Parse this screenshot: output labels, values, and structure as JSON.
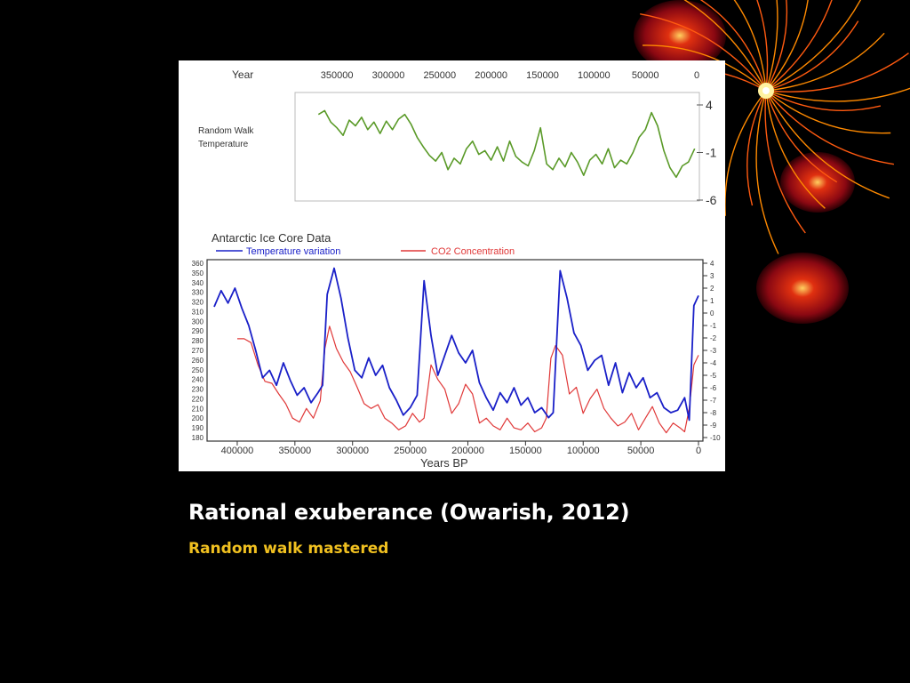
{
  "slide": {
    "title": "Rational exuberance (Owarish, 2012)",
    "subtitle": "Random walk mastered"
  },
  "colors": {
    "background": "#000000",
    "subtitle": "#f0c020",
    "random_walk": "#5a9a28",
    "temperature": "#1a20c8",
    "co2": "#e03838",
    "decor_orange": "#ff8a00"
  },
  "chart_data": [
    {
      "type": "line",
      "label": "Random Walk Temperature",
      "x_axis_label": "Year",
      "x_ticks": [
        "350000",
        "300000",
        "250000",
        "200000",
        "150000",
        "100000",
        "50000",
        "0"
      ],
      "y_ticks": [
        "4",
        "-1",
        "-6"
      ],
      "xlim": [
        370000,
        0
      ],
      "ylim": [
        -6,
        4
      ],
      "grid": false,
      "series": [
        {
          "name": "Random Walk Temperature",
          "color": "#5a9a28",
          "x": [
            368000,
            362000,
            356000,
            350000,
            344000,
            338000,
            332000,
            326000,
            320000,
            314000,
            308000,
            302000,
            296000,
            290000,
            284000,
            278000,
            272000,
            266000,
            260000,
            254000,
            248000,
            242000,
            236000,
            230000,
            224000,
            218000,
            212000,
            206000,
            200000,
            194000,
            188000,
            182000,
            176000,
            170000,
            164000,
            158000,
            152000,
            146000,
            140000,
            134000,
            128000,
            122000,
            116000,
            110000,
            104000,
            98000,
            92000,
            86000,
            80000,
            74000,
            68000,
            62000,
            56000,
            50000,
            44000,
            38000,
            32000,
            26000,
            20000,
            14000,
            8000,
            2000
          ],
          "y": [
            3.0,
            3.4,
            2.2,
            1.6,
            0.8,
            2.4,
            1.8,
            2.7,
            1.4,
            2.2,
            1.0,
            2.3,
            1.4,
            2.5,
            3.0,
            2.0,
            0.6,
            -0.4,
            -1.3,
            -1.9,
            -1.0,
            -2.8,
            -1.6,
            -2.2,
            -0.6,
            0.2,
            -1.2,
            -0.8,
            -1.8,
            -0.4,
            -1.9,
            0.2,
            -1.4,
            -2.0,
            -2.4,
            -0.8,
            1.6,
            -2.2,
            -2.8,
            -1.6,
            -2.5,
            -1.0,
            -2.0,
            -3.4,
            -1.8,
            -1.2,
            -2.2,
            -0.6,
            -2.6,
            -1.8,
            -2.2,
            -1.0,
            0.6,
            1.4,
            3.2,
            1.8,
            -0.8,
            -2.6,
            -3.6,
            -2.4,
            -2.0,
            -0.6
          ]
        }
      ]
    },
    {
      "type": "line",
      "title": "Antarctic Ice Core Data",
      "xlabel": "Years BP",
      "x_ticks": [
        "400000",
        "350000",
        "300000",
        "250000",
        "200000",
        "150000",
        "100000",
        "50000",
        "0"
      ],
      "y_ticks_left": [
        "360",
        "350",
        "340",
        "330",
        "320",
        "310",
        "300",
        "290",
        "280",
        "270",
        "260",
        "250",
        "240",
        "230",
        "220",
        "210",
        "200",
        "190",
        "180"
      ],
      "y_ticks_right": [
        "4",
        "3",
        "2",
        "1",
        "0",
        "-1",
        "-2",
        "-3",
        "-4",
        "-5",
        "-6",
        "-7",
        "-8",
        "-9",
        "-10"
      ],
      "xlim": [
        420000,
        0
      ],
      "ylim_left": [
        180,
        360
      ],
      "ylim_right": [
        -10,
        4
      ],
      "grid": false,
      "legend_position": "top",
      "series": [
        {
          "name": "Temperature variation",
          "color": "#1a20c8",
          "axis": "right",
          "x": [
            420000,
            414000,
            408000,
            402000,
            396000,
            390000,
            384000,
            378000,
            372000,
            366000,
            360000,
            354000,
            348000,
            342000,
            336000,
            330000,
            326000,
            322000,
            316000,
            310000,
            304000,
            298000,
            292000,
            286000,
            280000,
            274000,
            268000,
            262000,
            256000,
            250000,
            244000,
            238000,
            232000,
            226000,
            220000,
            214000,
            208000,
            202000,
            196000,
            190000,
            184000,
            178000,
            172000,
            166000,
            160000,
            154000,
            148000,
            142000,
            136000,
            130000,
            126000,
            120000,
            114000,
            108000,
            102000,
            96000,
            90000,
            84000,
            78000,
            72000,
            66000,
            60000,
            54000,
            48000,
            42000,
            36000,
            30000,
            24000,
            18000,
            12000,
            8000,
            4000,
            0
          ],
          "y": [
            0.5,
            1.8,
            0.8,
            2.0,
            0.4,
            -1.0,
            -3.0,
            -5.2,
            -4.6,
            -5.8,
            -4.0,
            -5.4,
            -6.6,
            -6.0,
            -7.2,
            -6.4,
            -5.8,
            1.5,
            3.6,
            1.2,
            -2.0,
            -4.6,
            -5.2,
            -3.6,
            -5.0,
            -4.2,
            -6.0,
            -7.0,
            -8.2,
            -7.6,
            -6.6,
            2.6,
            -1.8,
            -5.0,
            -3.4,
            -1.8,
            -3.2,
            -4.0,
            -3.0,
            -5.6,
            -6.8,
            -7.8,
            -6.4,
            -7.2,
            -6.0,
            -7.4,
            -6.8,
            -8.0,
            -7.6,
            -8.4,
            -8.0,
            3.4,
            1.2,
            -1.6,
            -2.6,
            -4.6,
            -3.8,
            -3.4,
            -5.8,
            -4.0,
            -6.4,
            -4.8,
            -6.0,
            -5.2,
            -6.8,
            -6.4,
            -7.6,
            -8.0,
            -7.8,
            -6.8,
            -8.6,
            0.6,
            1.4
          ]
        },
        {
          "name": "CO2 Concentration",
          "color": "#e03838",
          "axis": "left",
          "x": [
            400000,
            394000,
            388000,
            382000,
            376000,
            370000,
            364000,
            358000,
            352000,
            346000,
            340000,
            334000,
            328000,
            324000,
            320000,
            314000,
            308000,
            302000,
            296000,
            290000,
            284000,
            278000,
            272000,
            266000,
            260000,
            254000,
            248000,
            242000,
            238000,
            232000,
            226000,
            220000,
            214000,
            208000,
            202000,
            196000,
            190000,
            184000,
            178000,
            172000,
            166000,
            160000,
            154000,
            148000,
            142000,
            136000,
            132000,
            128000,
            124000,
            118000,
            112000,
            106000,
            100000,
            94000,
            88000,
            82000,
            76000,
            70000,
            64000,
            58000,
            52000,
            46000,
            40000,
            34000,
            28000,
            22000,
            16000,
            12000,
            8000,
            4000,
            0
          ],
          "y": [
            282,
            282,
            278,
            255,
            238,
            236,
            225,
            215,
            200,
            196,
            210,
            200,
            218,
            272,
            295,
            272,
            258,
            248,
            232,
            215,
            210,
            214,
            200,
            195,
            188,
            192,
            205,
            196,
            200,
            255,
            240,
            230,
            205,
            215,
            235,
            225,
            195,
            200,
            192,
            188,
            200,
            190,
            188,
            195,
            186,
            190,
            200,
            262,
            275,
            265,
            225,
            232,
            205,
            220,
            230,
            210,
            200,
            192,
            196,
            205,
            188,
            200,
            212,
            195,
            185,
            195,
            190,
            186,
            210,
            255,
            265
          ]
        }
      ]
    }
  ]
}
